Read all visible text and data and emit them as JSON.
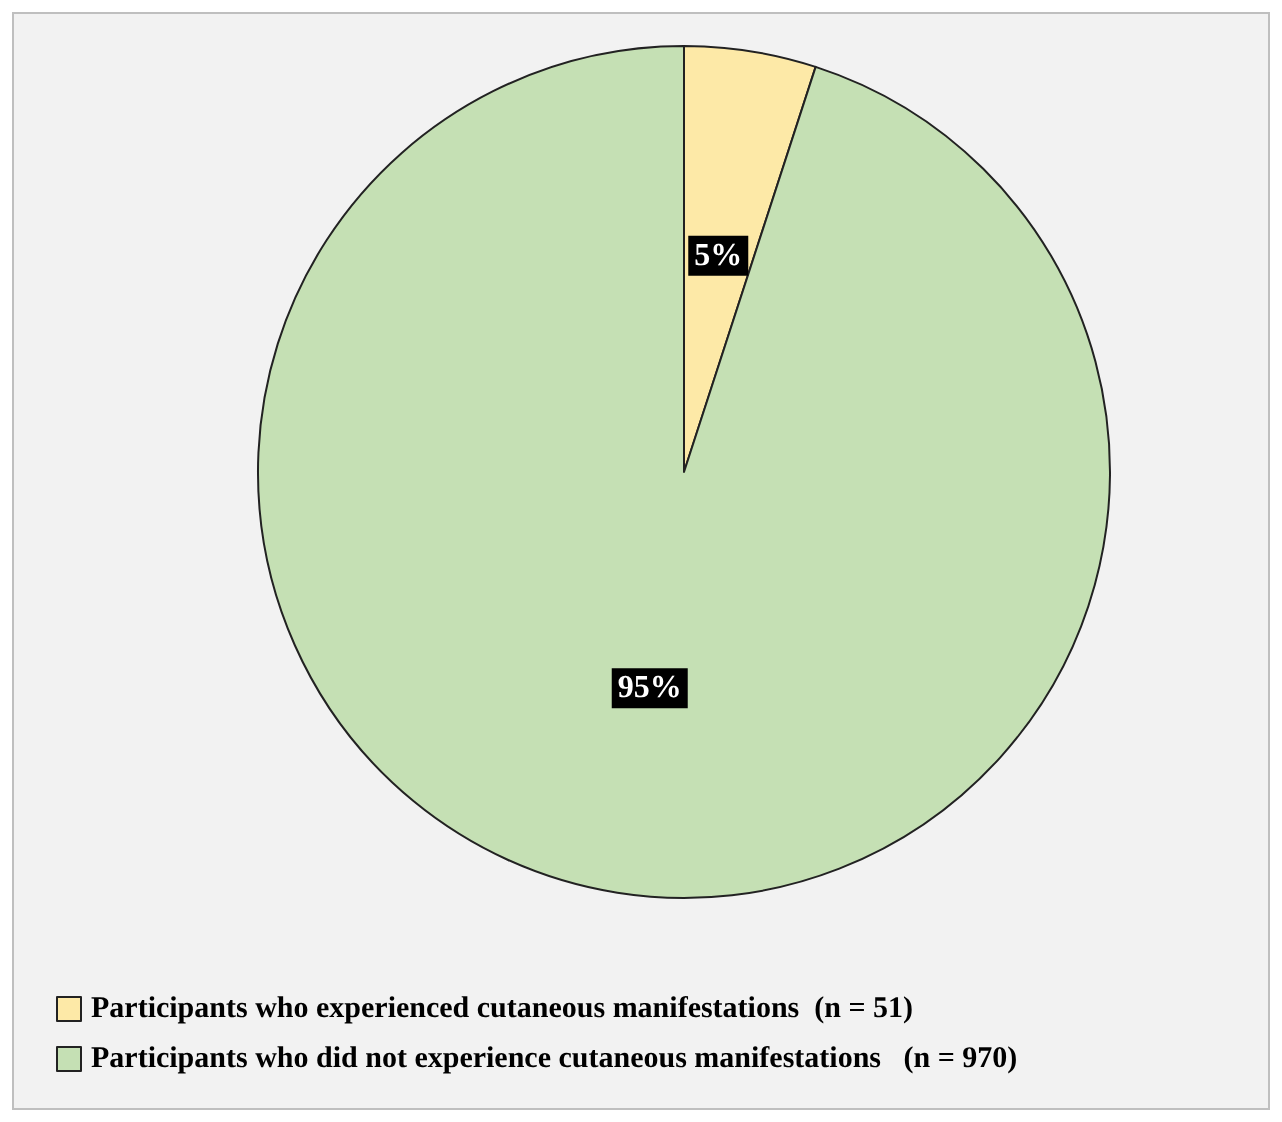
{
  "chart_data": {
    "type": "pie",
    "categories": [
      "Participants who experienced cutaneous manifestations  (n = 51)",
      "Participants who did not experience cutaneous manifestations   (n = 970)"
    ],
    "values": [
      5,
      95
    ],
    "colors": [
      "#fde9a7",
      "#c5e0b4"
    ],
    "value_labels": [
      "5%",
      "95%"
    ],
    "legend": "bottom"
  }
}
